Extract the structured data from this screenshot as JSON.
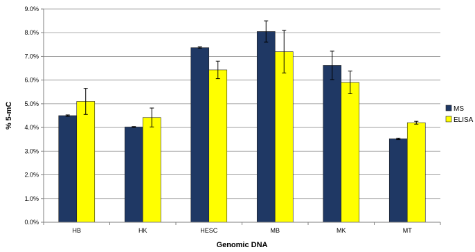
{
  "chart_data": {
    "type": "bar",
    "categories": [
      "HB",
      "HK",
      "HESC",
      "MB",
      "MK",
      "MT"
    ],
    "series": [
      {
        "name": "MS",
        "color": "#1f3864",
        "values": [
          4.5,
          4.02,
          7.37,
          8.05,
          6.62,
          3.52
        ],
        "errors": [
          0.03,
          0.02,
          0.03,
          0.45,
          0.6,
          0.03
        ]
      },
      {
        "name": "ELISA",
        "color": "#ffff00",
        "values": [
          5.1,
          4.42,
          6.43,
          7.2,
          5.9,
          4.2
        ],
        "errors": [
          0.55,
          0.4,
          0.37,
          0.9,
          0.48,
          0.06
        ]
      }
    ],
    "xlabel": "Genomic DNA",
    "ylabel": "% 5-mC",
    "ylim": [
      0,
      9
    ],
    "ytick_values": [
      0,
      1,
      2,
      3,
      4,
      5,
      6,
      7,
      8,
      9
    ],
    "ytick_labels": [
      "0.0%",
      "1.0%",
      "2.0%",
      "3.0%",
      "4.0%",
      "5.0%",
      "6.0%",
      "7.0%",
      "8.0%",
      "9.0%"
    ],
    "grid": true,
    "legend_position": "right"
  }
}
